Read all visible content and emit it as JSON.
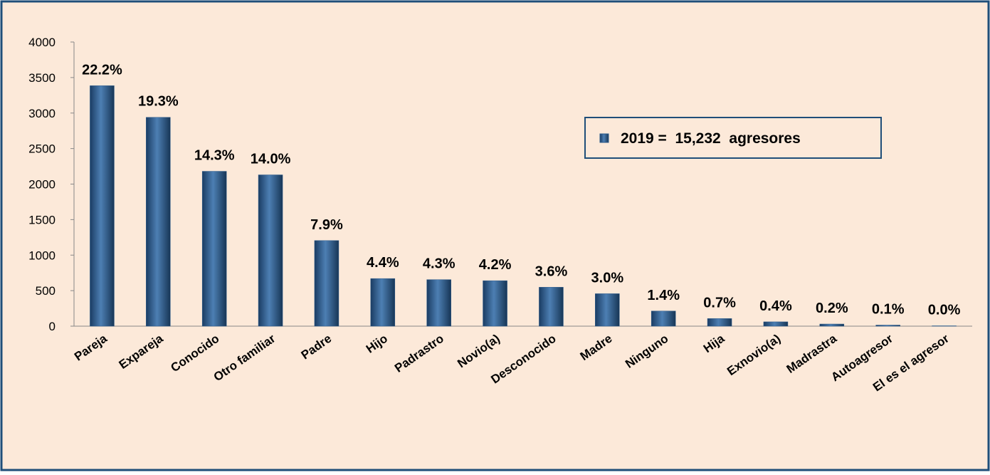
{
  "chart_data": {
    "type": "bar",
    "categories": [
      "Pareja",
      "Expareja",
      "Conocido",
      "Otro familiar",
      "Padre",
      "Hijo",
      "Padrastro",
      "Novio(a)",
      "Desconocido",
      "Madre",
      "Ninguno",
      "Hija",
      "Exnovio(a)",
      "Madrastra",
      "Autoagresor",
      "El es el agresor"
    ],
    "series": [
      {
        "name": "2019 =  15,232  agresores",
        "color": "#2a5a8c",
        "values": [
          3385,
          2940,
          2180,
          2130,
          1205,
          670,
          655,
          640,
          548,
          457,
          213,
          107,
          61,
          30,
          15,
          5
        ]
      }
    ],
    "data_labels": [
      "22.2%",
      "19.3%",
      "14.3%",
      "14.0%",
      "7.9%",
      "4.4%",
      "4.3%",
      "4.2%",
      "3.6%",
      "3.0%",
      "1.4%",
      "0.7%",
      "0.4%",
      "0.2%",
      "0.1%",
      "0.0%"
    ],
    "ylim": [
      0,
      4000
    ],
    "yticks": [
      0,
      500,
      1000,
      1500,
      2000,
      2500,
      3000,
      3500,
      4000
    ],
    "grid": false,
    "legend": "upper right"
  }
}
